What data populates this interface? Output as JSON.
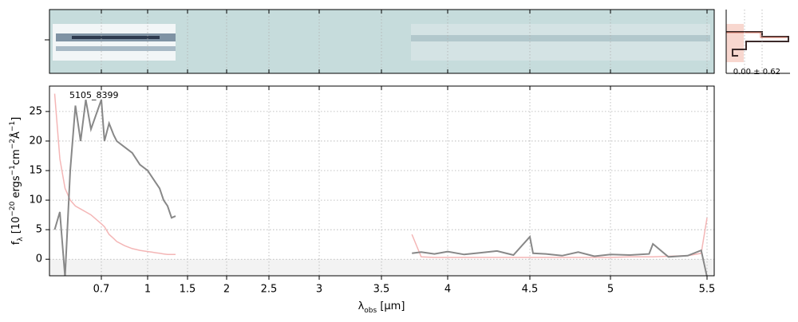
{
  "chart_data": {
    "type": "line",
    "title": "5105_8399",
    "xlabel": [
      "λ",
      "obs",
      " [μm]"
    ],
    "ylabel": [
      "f",
      "λ",
      " [10",
      "−20",
      " ergs",
      "−1",
      "cm",
      "−2",
      "Å",
      "−1",
      "]"
    ],
    "annotation": "0.00 ± 0.62",
    "x": [
      0.61,
      0.62,
      0.63,
      0.64,
      0.65,
      0.66,
      0.67,
      0.68,
      0.7,
      0.72,
      0.75,
      0.78,
      0.8,
      0.85,
      0.9,
      0.95,
      1.0,
      1.05,
      1.1,
      1.15,
      1.2,
      1.25,
      1.3,
      1.35,
      null,
      3.73,
      3.8,
      3.9,
      4.0,
      4.1,
      4.2,
      4.3,
      4.4,
      4.5,
      4.52,
      4.6,
      4.7,
      4.8,
      4.9,
      5.0,
      5.1,
      5.2,
      5.22,
      5.3,
      5.4,
      5.47,
      5.5
    ],
    "series": [
      {
        "color": "#888888",
        "values": [
          5,
          8,
          -3,
          15,
          26,
          20,
          27,
          22,
          27,
          20,
          23,
          21,
          20,
          19,
          18,
          16,
          15,
          14,
          13,
          12,
          10,
          9,
          7,
          7.3,
          null,
          1,
          1.2,
          0.9,
          1.3,
          0.8,
          1.1,
          1.4,
          0.7,
          3.8,
          1,
          0.9,
          0.6,
          1.2,
          0.5,
          0.8,
          0.7,
          0.9,
          2.6,
          0.4,
          0.6,
          1.5,
          -3
        ]
      },
      {
        "color": "#f4b6b6",
        "values": [
          28,
          17,
          12,
          10,
          9,
          8.5,
          8,
          7.5,
          6,
          5.5,
          4.2,
          3.5,
          3,
          2.3,
          1.8,
          1.5,
          1.3,
          1.2,
          1.1,
          1,
          0.9,
          0.8,
          0.8,
          0.8,
          null,
          4.2,
          0.4,
          0.3,
          0.3,
          0.3,
          0.3,
          0.3,
          0.3,
          0.3,
          0.3,
          0.3,
          0.3,
          0.3,
          0.3,
          0.3,
          0.4,
          0.4,
          0.4,
          0.5,
          0.6,
          1,
          7
        ]
      }
    ],
    "xlim": [
      0.6,
      5.53
    ],
    "xticks": [
      0.7,
      1.0,
      1.5,
      2.0,
      2.5,
      3.0,
      3.5,
      4.0,
      4.5,
      5.0,
      5.5
    ],
    "ylim": [
      -2.8,
      29.3
    ],
    "yticks": [
      0,
      5,
      10,
      15,
      20,
      25
    ],
    "grid": true
  }
}
